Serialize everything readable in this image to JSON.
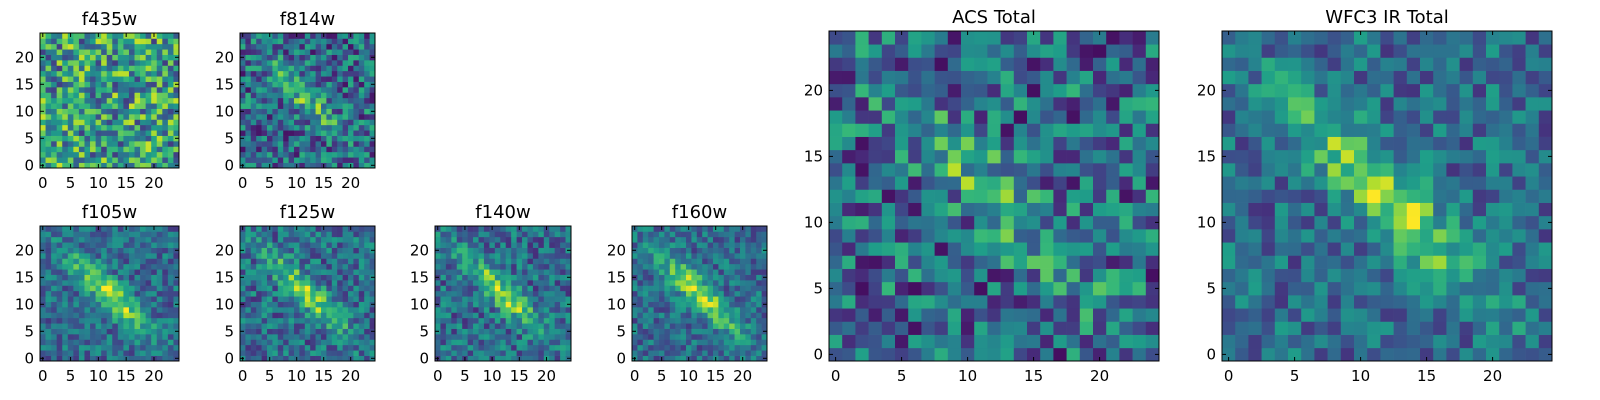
{
  "chart_data": {
    "type": "heatmap",
    "colormap": "viridis",
    "grid": false,
    "panels": [
      {
        "title": "f435w",
        "size": 25,
        "xticks": [
          0,
          5,
          10,
          15,
          20
        ],
        "yticks": [
          0,
          5,
          10,
          15,
          20
        ],
        "xlim": [
          -0.5,
          24.5
        ],
        "ylim": [
          -0.5,
          24.5
        ],
        "structure": "noise",
        "peak": 0.55
      },
      {
        "title": "f814w",
        "size": 25,
        "xticks": [
          0,
          5,
          10,
          15,
          20
        ],
        "yticks": [
          0,
          5,
          10,
          15,
          20
        ],
        "xlim": [
          -0.5,
          24.5
        ],
        "ylim": [
          -0.5,
          24.5
        ],
        "structure": "diagonal",
        "peak": 0.5
      },
      {
        "title": "f105w",
        "size": 25,
        "xticks": [
          0,
          5,
          10,
          15,
          20
        ],
        "yticks": [
          0,
          5,
          10,
          15,
          20
        ],
        "xlim": [
          -0.5,
          24.5
        ],
        "ylim": [
          -0.5,
          24.5
        ],
        "structure": "diagonal",
        "peak": 0.85
      },
      {
        "title": "f125w",
        "size": 25,
        "xticks": [
          0,
          5,
          10,
          15,
          20
        ],
        "yticks": [
          0,
          5,
          10,
          15,
          20
        ],
        "xlim": [
          -0.5,
          24.5
        ],
        "ylim": [
          -0.5,
          24.5
        ],
        "structure": "diagonal",
        "peak": 0.75
      },
      {
        "title": "f140w",
        "size": 25,
        "xticks": [
          0,
          5,
          10,
          15,
          20
        ],
        "yticks": [
          0,
          5,
          10,
          15,
          20
        ],
        "xlim": [
          -0.5,
          24.5
        ],
        "ylim": [
          -0.5,
          24.5
        ],
        "structure": "diagonal",
        "peak": 0.75
      },
      {
        "title": "f160w",
        "size": 25,
        "xticks": [
          0,
          5,
          10,
          15,
          20
        ],
        "yticks": [
          0,
          5,
          10,
          15,
          20
        ],
        "xlim": [
          -0.5,
          24.5
        ],
        "ylim": [
          -0.5,
          24.5
        ],
        "structure": "diagonal",
        "peak": 0.85
      },
      {
        "title": "ACS Total",
        "size": 25,
        "xticks": [
          0,
          5,
          10,
          15,
          20
        ],
        "yticks": [
          0,
          5,
          10,
          15,
          20
        ],
        "xlim": [
          -0.5,
          24.5
        ],
        "ylim": [
          -0.5,
          24.5
        ],
        "structure": "diagonal",
        "peak": 0.45
      },
      {
        "title": "WFC3 IR Total",
        "size": 25,
        "xticks": [
          0,
          5,
          10,
          15,
          20
        ],
        "yticks": [
          0,
          5,
          10,
          15,
          20
        ],
        "xlim": [
          -0.5,
          24.5
        ],
        "ylim": [
          -0.5,
          24.5
        ],
        "structure": "diagonal",
        "peak": 0.8
      }
    ]
  }
}
